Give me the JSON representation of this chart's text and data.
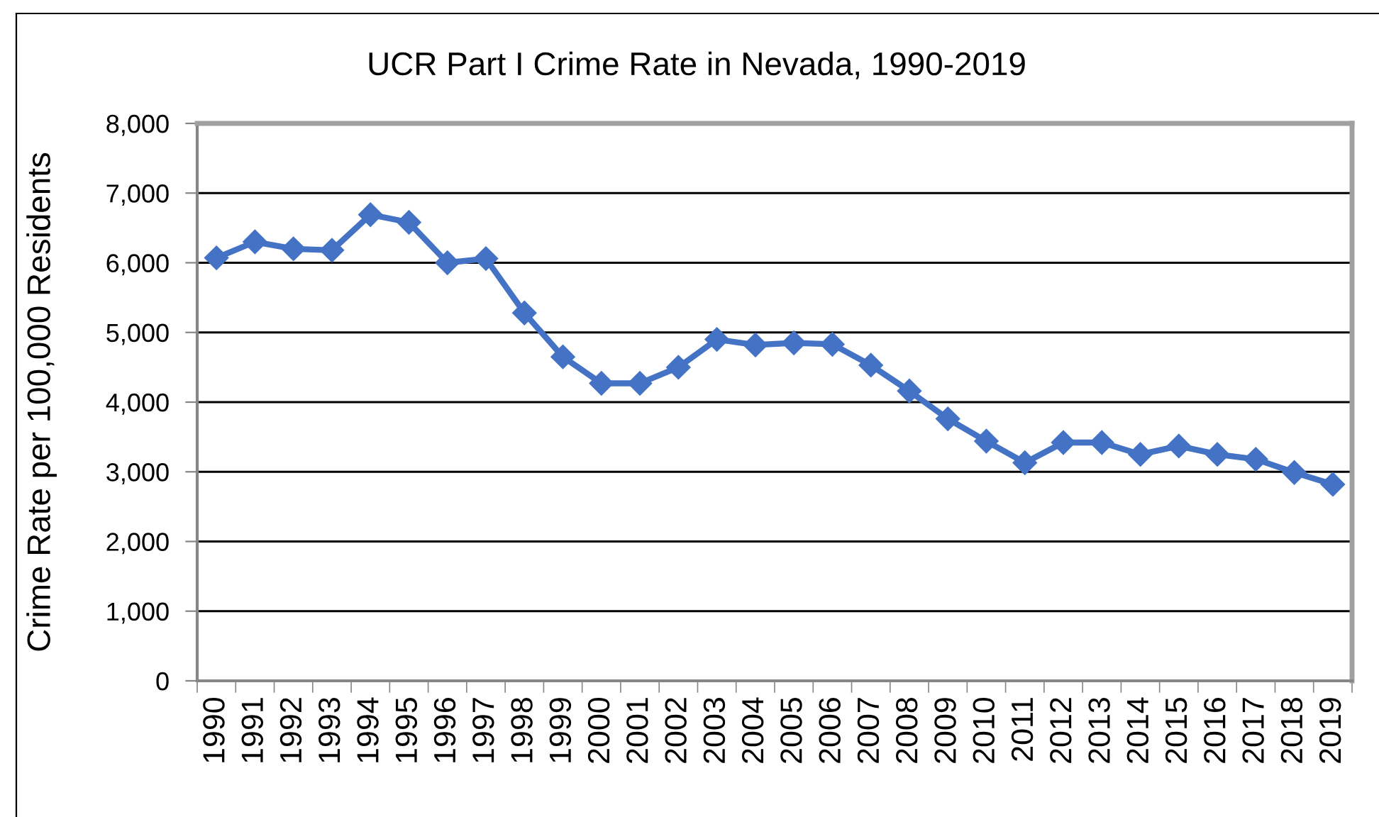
{
  "chart_data": {
    "type": "line",
    "title": "UCR Part I Crime Rate in Nevada, 1990-2019",
    "ylabel": "Crime Rate per 100,000 Residents",
    "categories": [
      "1990",
      "1991",
      "1992",
      "1993",
      "1994",
      "1995",
      "1996",
      "1997",
      "1998",
      "1999",
      "2000",
      "2001",
      "2002",
      "2003",
      "2004",
      "2005",
      "2006",
      "2007",
      "2008",
      "2009",
      "2010",
      "2011",
      "2012",
      "2013",
      "2014",
      "2015",
      "2016",
      "2017",
      "2018",
      "2019"
    ],
    "series": [
      {
        "color": "#4472c4",
        "values": [
          6070,
          6300,
          6200,
          6180,
          6690,
          6580,
          6000,
          6060,
          5280,
          4650,
          4270,
          4270,
          4500,
          4900,
          4820,
          4850,
          4830,
          4530,
          4160,
          3760,
          3440,
          3130,
          3420,
          3420,
          3250,
          3370,
          3250,
          3180,
          2990,
          2820
        ]
      }
    ],
    "ylim": [
      0,
      8000
    ],
    "yticks": [
      0,
      {
        "value": 1000,
        "label": "1,000"
      },
      {
        "value": 2000,
        "label": "2,000"
      },
      {
        "value": 3000,
        "label": "3,000"
      },
      {
        "value": 4000,
        "label": "4,000"
      },
      {
        "value": 5000,
        "label": "5,000"
      },
      {
        "value": 6000,
        "label": "6,000"
      },
      {
        "value": 7000,
        "label": "7,000"
      },
      {
        "value": 8000,
        "label": "8,000"
      }
    ],
    "grid": "y",
    "marker": "diamond",
    "line_style": "solid"
  }
}
